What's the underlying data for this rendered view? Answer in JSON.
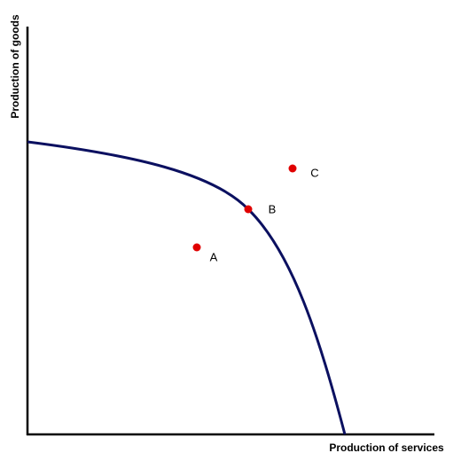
{
  "axes": {
    "y_label": "Production of goods",
    "x_label": "Production of services"
  },
  "points": [
    {
      "label": "A"
    },
    {
      "label": "B"
    },
    {
      "label": "C"
    }
  ]
}
